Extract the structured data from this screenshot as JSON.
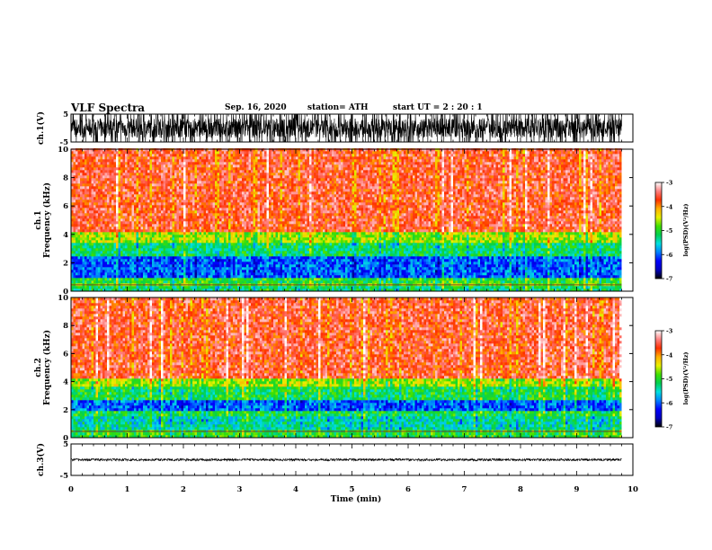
{
  "header": {
    "title": "VLF Spectra",
    "date": "Sep. 16, 2020",
    "station": "station= ATH",
    "start_ut": "start  UT =  2 : 20 : 1"
  },
  "colors": {
    "colormap": [
      "#000000",
      "#0000c0",
      "#0000ff",
      "#0080ff",
      "#00e0e0",
      "#00d050",
      "#40e000",
      "#e8f000",
      "#ffb000",
      "#ff3000",
      "#ff8080",
      "#ffffff"
    ]
  },
  "chart_data": [
    {
      "type": "line",
      "name": "waveform-ch1",
      "ylabel": "ch.1(V)",
      "ylim": [
        -5,
        5
      ],
      "yticks": [
        -5,
        5
      ],
      "xlim": [
        0,
        10
      ],
      "signal_range": [
        -5,
        5
      ],
      "signal_end_min": 9.8
    },
    {
      "type": "heatmap",
      "name": "spectrogram-ch1",
      "ylabel": "ch.1\nFrequency (kHz)",
      "ylim": [
        0,
        10
      ],
      "yticks": [
        0,
        2,
        4,
        6,
        8,
        10
      ],
      "xlim": [
        0,
        10
      ],
      "data_end_min": 9.8,
      "colorbar": {
        "label": "log(PSD)(V²/Hz)",
        "range": [
          -7,
          -3
        ],
        "ticks": [
          -7,
          -6,
          -5,
          -4,
          -3
        ]
      },
      "bands_khz_log_psd": [
        [
          0,
          0.5,
          -5.2
        ],
        [
          0.5,
          1.0,
          -5.0
        ],
        [
          1.0,
          2.5,
          -6.0
        ],
        [
          2.5,
          3.5,
          -5.2
        ],
        [
          3.5,
          4.2,
          -4.6
        ],
        [
          4.2,
          10,
          -3.6
        ]
      ]
    },
    {
      "type": "heatmap",
      "name": "spectrogram-ch2",
      "ylabel": "ch.2\nFrequency (kHz)",
      "ylim": [
        0,
        10
      ],
      "yticks": [
        0,
        2,
        4,
        6,
        8,
        10
      ],
      "xlim": [
        0,
        10
      ],
      "data_end_min": 9.8,
      "colorbar": {
        "label": "log(PSD)(V²/Hz)",
        "range": [
          -7,
          -3
        ],
        "ticks": [
          -7,
          -6,
          -5,
          -4,
          -3
        ]
      },
      "bands_khz_log_psd": [
        [
          0,
          0.5,
          -5.0
        ],
        [
          0.5,
          1.5,
          -5.4
        ],
        [
          1.5,
          2.0,
          -5.1
        ],
        [
          2.0,
          2.7,
          -6.0
        ],
        [
          2.7,
          3.6,
          -5.1
        ],
        [
          3.6,
          4.2,
          -4.6
        ],
        [
          4.2,
          10,
          -3.6
        ]
      ]
    },
    {
      "type": "line",
      "name": "waveform-ch3",
      "ylabel": "ch.3(V)",
      "ylim": [
        -5,
        5
      ],
      "yticks": [
        -5,
        5
      ],
      "xlim": [
        0,
        10
      ],
      "xlabel": "Time (min)",
      "xticks": [
        0,
        1,
        2,
        3,
        4,
        5,
        6,
        7,
        8,
        9,
        10
      ],
      "signal_range": [
        -0.6,
        0.3
      ],
      "signal_end_min": 9.8
    }
  ]
}
